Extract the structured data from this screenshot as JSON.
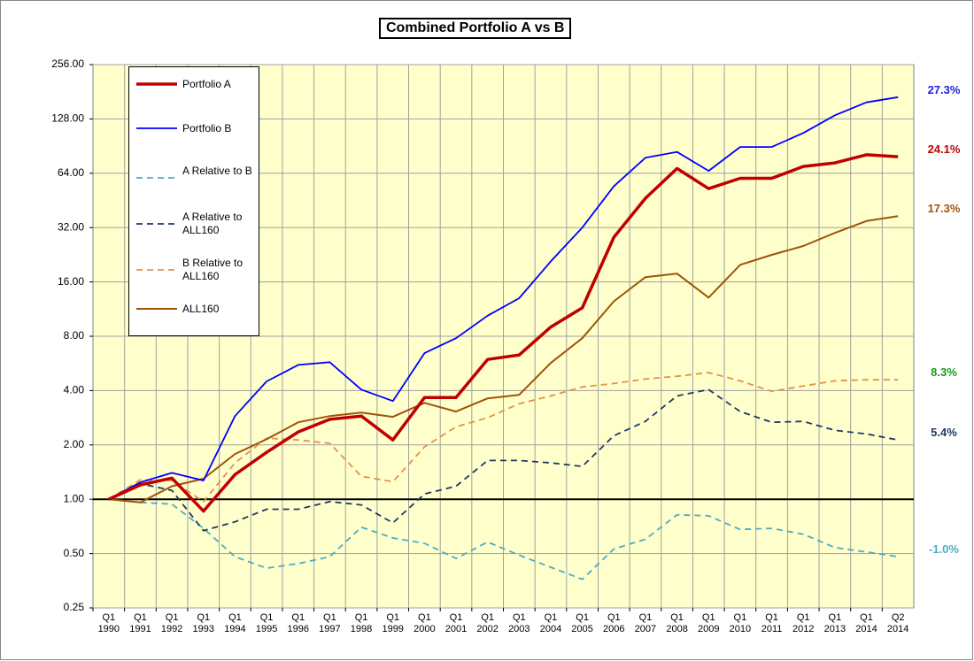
{
  "chart_data": {
    "type": "line",
    "title": "Combined Portfolio A vs B",
    "categories": [
      "Q1 1990",
      "Q1 1991",
      "Q1 1992",
      "Q1 1993",
      "Q1 1994",
      "Q1 1995",
      "Q1 1996",
      "Q1 1997",
      "Q1 1998",
      "Q1 1999",
      "Q1 2000",
      "Q1 2001",
      "Q1 2002",
      "Q1 2003",
      "Q1 2004",
      "Q1 2005",
      "Q1 2006",
      "Q1 2007",
      "Q1 2008",
      "Q1 2009",
      "Q1 2010",
      "Q1 2011",
      "Q1 2012",
      "Q1 2013",
      "Q1 2014",
      "Q2 2014"
    ],
    "log_scale": true,
    "grid": true,
    "background": "#ffffcc",
    "ylim": [
      0.25,
      256
    ],
    "yticks": [
      {
        "value": 0.25,
        "label": "0.25"
      },
      {
        "value": 0.5,
        "label": "0.50"
      },
      {
        "value": 1,
        "label": "1.00"
      },
      {
        "value": 2,
        "label": "2.00"
      },
      {
        "value": 4,
        "label": "4.00"
      },
      {
        "value": 8,
        "label": "8.00"
      },
      {
        "value": 16,
        "label": "16.00"
      },
      {
        "value": 32,
        "label": "32.00"
      },
      {
        "value": 64,
        "label": "64.00"
      },
      {
        "value": 128,
        "label": "128.00"
      },
      {
        "value": 256,
        "label": "256.00"
      }
    ],
    "series": [
      {
        "name": "Portfolio A",
        "color": "#c00000",
        "style": "solid",
        "width": 3.5,
        "values": [
          1.0,
          1.2,
          1.31,
          0.86,
          1.37,
          1.82,
          2.36,
          2.77,
          2.89,
          2.13,
          3.66,
          3.66,
          5.95,
          6.3,
          9.0,
          11.5,
          28.3,
          46.5,
          68,
          52.6,
          60,
          60,
          69.8,
          73,
          81,
          79
        ]
      },
      {
        "name": "Portfolio B",
        "color": "#0000ff",
        "style": "solid",
        "width": 1.8,
        "values": [
          1.0,
          1.24,
          1.4,
          1.27,
          2.89,
          4.5,
          5.55,
          5.75,
          4.05,
          3.5,
          6.45,
          7.8,
          10.4,
          13,
          20.8,
          32,
          54.3,
          78,
          84,
          66,
          89.5,
          89.5,
          107,
          134,
          158,
          169
        ]
      },
      {
        "name": "A Relative to B",
        "color": "#4bacc6",
        "style": "dashed",
        "width": 1.8,
        "values": [
          1.0,
          0.96,
          0.94,
          0.69,
          0.48,
          0.415,
          0.44,
          0.48,
          0.7,
          0.61,
          0.57,
          0.47,
          0.58,
          0.49,
          0.42,
          0.36,
          0.53,
          0.6,
          0.82,
          0.81,
          0.68,
          0.69,
          0.64,
          0.54,
          0.51,
          0.48
        ]
      },
      {
        "name": "A Relative to ALL160",
        "color": "#1f3864",
        "style": "dashed",
        "width": 1.8,
        "values": [
          1.0,
          1.22,
          1.12,
          0.67,
          0.75,
          0.88,
          0.88,
          0.97,
          0.93,
          0.74,
          1.07,
          1.18,
          1.64,
          1.64,
          1.59,
          1.52,
          2.25,
          2.7,
          3.74,
          4.05,
          3.06,
          2.67,
          2.7,
          2.41,
          2.3,
          2.13
        ]
      },
      {
        "name": "B Relative to ALL160",
        "color": "#e3904a",
        "style": "dashed",
        "width": 1.8,
        "values": [
          1.0,
          1.28,
          1.27,
          0.97,
          1.59,
          2.18,
          2.13,
          2.04,
          1.34,
          1.25,
          1.95,
          2.52,
          2.83,
          3.38,
          3.74,
          4.19,
          4.38,
          4.64,
          4.8,
          5.03,
          4.53,
          3.96,
          4.24,
          4.53,
          4.59,
          4.59
        ]
      },
      {
        "name": "ALL160",
        "color": "#a0520a",
        "style": "solid",
        "width": 2,
        "values": [
          1.0,
          0.96,
          1.18,
          1.3,
          1.78,
          2.15,
          2.67,
          2.89,
          3.02,
          2.86,
          3.42,
          3.06,
          3.62,
          3.79,
          5.69,
          7.8,
          12.5,
          17,
          17.8,
          13.1,
          19.9,
          22.6,
          25.3,
          29.9,
          34.8,
          37
        ]
      }
    ],
    "annotations": [
      {
        "text": "27.3%",
        "color": "#2020e0"
      },
      {
        "text": "24.1%",
        "color": "#c00000"
      },
      {
        "text": "17.3%",
        "color": "#a0520a"
      },
      {
        "text": "8.3%",
        "color": "#1a9a1a"
      },
      {
        "text": "5.4%",
        "color": "#1f3864"
      },
      {
        "text": "-1.0%",
        "color": "#4bacc6"
      }
    ]
  }
}
